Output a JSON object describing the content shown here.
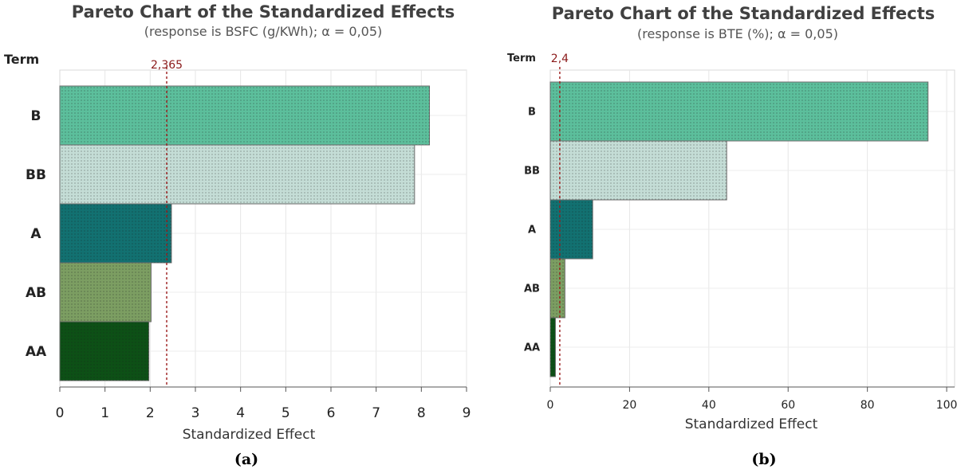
{
  "chart_data": [
    {
      "type": "bar",
      "orientation": "horizontal",
      "title": "Pareto Chart of the Standardized Effects",
      "subtitle": "(response is BSFC (g/KWh); α = 0,05)",
      "ylabel": "Term",
      "xlabel": "Standardized Effect",
      "categories": [
        "B",
        "BB",
        "A",
        "AB",
        "AA"
      ],
      "values": [
        8.18,
        7.85,
        2.47,
        2.02,
        1.97
      ],
      "bar_colors": [
        "#5cbf9c",
        "#c4ddd6",
        "#127171",
        "#7c9e62",
        "#0d5016"
      ],
      "xlim": [
        0,
        9
      ],
      "xticks": [
        "0",
        "1",
        "2",
        "3",
        "4",
        "5",
        "6",
        "7",
        "8",
        "9"
      ],
      "critical_value": 2.365,
      "critical_label": "2,365",
      "caption": "(a)",
      "grid": true
    },
    {
      "type": "bar",
      "orientation": "horizontal",
      "title": "Pareto Chart of the Standardized Effects",
      "subtitle": "(response is BTE (%); α = 0,05)",
      "ylabel": "Term",
      "xlabel": "Standardized Effect",
      "categories": [
        "B",
        "BB",
        "A",
        "AB",
        "AA"
      ],
      "values": [
        95.3,
        44.5,
        10.7,
        3.7,
        1.3
      ],
      "bar_colors": [
        "#5cbf9c",
        "#c4ddd6",
        "#127171",
        "#7c9e62",
        "#0d5016"
      ],
      "xlim": [
        0,
        102
      ],
      "xticks": [
        "0",
        "20",
        "40",
        "60",
        "80",
        "100"
      ],
      "critical_value": 2.4,
      "critical_label": "2,4",
      "caption": "(b)",
      "grid": true
    }
  ]
}
